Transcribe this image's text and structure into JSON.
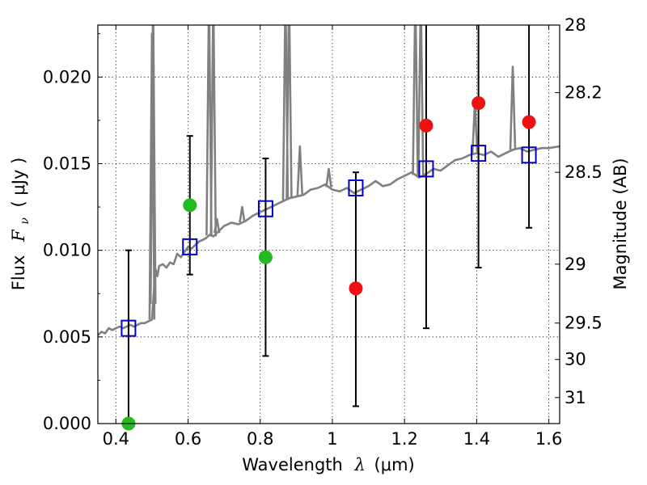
{
  "chart_data": {
    "type": "scatter",
    "xlabel_prefix": "Wavelength",
    "xlabel_symbol": "λ",
    "xlabel_unit": "(μm)",
    "ylabel_prefix": "Flux",
    "ylabel_symbol": "F",
    "ylabel_subscript": "ν",
    "ylabel_unit": "( μJy )",
    "y2label": "Magnitude (AB)",
    "xlim": [
      0.35,
      1.63
    ],
    "ylim": [
      0.0,
      0.023
    ],
    "grid": true,
    "x_ticks": [
      {
        "value": 0.4,
        "label": "0.4"
      },
      {
        "value": 0.6,
        "label": "0.6"
      },
      {
        "value": 0.8,
        "label": "0.8"
      },
      {
        "value": 1.0,
        "label": "1"
      },
      {
        "value": 1.2,
        "label": "1.2"
      },
      {
        "value": 1.4,
        "label": "1.4"
      },
      {
        "value": 1.6,
        "label": "1.6"
      }
    ],
    "y_ticks": [
      {
        "value": 0.0,
        "label": "0.000"
      },
      {
        "value": 0.005,
        "label": "0.005"
      },
      {
        "value": 0.01,
        "label": "0.010"
      },
      {
        "value": 0.015,
        "label": "0.015"
      },
      {
        "value": 0.02,
        "label": "0.020"
      }
    ],
    "y2_ticks": [
      {
        "flux": 0.023,
        "label": "28"
      },
      {
        "flux": 0.0191,
        "label": "28.2"
      },
      {
        "flux": 0.0145,
        "label": "28.5"
      },
      {
        "flux": 0.0092,
        "label": "29"
      },
      {
        "flux": 0.0058,
        "label": "29.5"
      },
      {
        "flux": 0.0037,
        "label": "30"
      },
      {
        "flux": 0.0015,
        "label": "31"
      }
    ],
    "series": [
      {
        "kind": "model_spectrum",
        "color": "#808080",
        "x": [
          0.35,
          0.36,
          0.37,
          0.38,
          0.39,
          0.4,
          0.41,
          0.42,
          0.43,
          0.44,
          0.45,
          0.46,
          0.47,
          0.48,
          0.49,
          0.5,
          0.505,
          0.51,
          0.515,
          0.52,
          0.53,
          0.54,
          0.55,
          0.56,
          0.57,
          0.58,
          0.59,
          0.6,
          0.61,
          0.62,
          0.63,
          0.64,
          0.65,
          0.66,
          0.67,
          0.68,
          0.7,
          0.72,
          0.74,
          0.76,
          0.78,
          0.8,
          0.82,
          0.84,
          0.86,
          0.88,
          0.9,
          0.92,
          0.94,
          0.96,
          0.98,
          1.0,
          1.02,
          1.04,
          1.06,
          1.08,
          1.1,
          1.12,
          1.14,
          1.16,
          1.18,
          1.2,
          1.22,
          1.24,
          1.26,
          1.28,
          1.3,
          1.32,
          1.34,
          1.36,
          1.38,
          1.4,
          1.42,
          1.44,
          1.46,
          1.48,
          1.5,
          1.52,
          1.54,
          1.56,
          1.58,
          1.6,
          1.63
        ],
        "y": [
          0.0051,
          0.0053,
          0.0052,
          0.0055,
          0.0054,
          0.0055,
          0.0056,
          0.0055,
          0.0056,
          0.0057,
          0.0056,
          0.0057,
          0.0058,
          0.0058,
          0.0059,
          0.006,
          0.0075,
          0.0089,
          0.0085,
          0.0091,
          0.0092,
          0.009,
          0.0093,
          0.0092,
          0.0098,
          0.0096,
          0.0099,
          0.0102,
          0.0101,
          0.0103,
          0.0105,
          0.0106,
          0.0107,
          0.0109,
          0.0108,
          0.011,
          0.0114,
          0.0116,
          0.0115,
          0.0117,
          0.012,
          0.0122,
          0.0124,
          0.0126,
          0.0128,
          0.013,
          0.0131,
          0.0132,
          0.0135,
          0.0136,
          0.0138,
          0.0135,
          0.0134,
          0.0136,
          0.0133,
          0.0135,
          0.0137,
          0.014,
          0.0137,
          0.0138,
          0.0141,
          0.0143,
          0.0145,
          0.0142,
          0.0144,
          0.0147,
          0.0146,
          0.0149,
          0.0152,
          0.0153,
          0.0155,
          0.0156,
          0.0155,
          0.0157,
          0.0154,
          0.0156,
          0.0158,
          0.0159,
          0.0157,
          0.0158,
          0.0159,
          0.0159,
          0.016
        ],
        "spikes": [
          {
            "x": 0.503,
            "y": 0.025
          },
          {
            "x": 0.5,
            "y": 0.0225
          },
          {
            "x": 0.658,
            "y": 0.025
          },
          {
            "x": 0.67,
            "y": 0.025
          },
          {
            "x": 0.68,
            "y": 0.0118
          },
          {
            "x": 0.75,
            "y": 0.0125
          },
          {
            "x": 0.87,
            "y": 0.025
          },
          {
            "x": 0.88,
            "y": 0.025
          },
          {
            "x": 0.91,
            "y": 0.016
          },
          {
            "x": 0.99,
            "y": 0.0147
          },
          {
            "x": 1.23,
            "y": 0.025
          },
          {
            "x": 1.245,
            "y": 0.025
          },
          {
            "x": 1.395,
            "y": 0.0185
          },
          {
            "x": 1.5,
            "y": 0.0206
          }
        ]
      },
      {
        "kind": "model_photometry",
        "marker": "square",
        "color": "#0000cc",
        "points": [
          {
            "x": 0.435,
            "y": 0.0055,
            "err_lo": 0.0,
            "err_hi": 0.01
          },
          {
            "x": 0.605,
            "y": 0.0102,
            "err_lo": 0.0086,
            "err_hi": 0.0166
          },
          {
            "x": 0.815,
            "y": 0.0124,
            "err_lo": 0.0039,
            "err_hi": 0.0153
          },
          {
            "x": 1.065,
            "y": 0.0136,
            "err_lo": 0.001,
            "err_hi": 0.0145
          },
          {
            "x": 1.26,
            "y": 0.0147,
            "err_lo": 0.0055,
            "err_hi": 0.023
          },
          {
            "x": 1.405,
            "y": 0.0156,
            "err_lo": 0.009,
            "err_hi": 0.023
          },
          {
            "x": 1.545,
            "y": 0.0155,
            "err_lo": 0.0113,
            "err_hi": 0.023
          }
        ]
      },
      {
        "kind": "observed_detections",
        "marker": "circle",
        "color": "#22bb22",
        "points": [
          {
            "x": 0.435,
            "y": 0.0
          },
          {
            "x": 0.605,
            "y": 0.0126
          },
          {
            "x": 0.815,
            "y": 0.0096
          }
        ]
      },
      {
        "kind": "observed_upper_limits",
        "marker": "circle",
        "color": "#ee1111",
        "points": [
          {
            "x": 1.065,
            "y": 0.0078
          },
          {
            "x": 1.26,
            "y": 0.0172
          },
          {
            "x": 1.405,
            "y": 0.0185
          },
          {
            "x": 1.545,
            "y": 0.0174
          }
        ]
      }
    ]
  }
}
